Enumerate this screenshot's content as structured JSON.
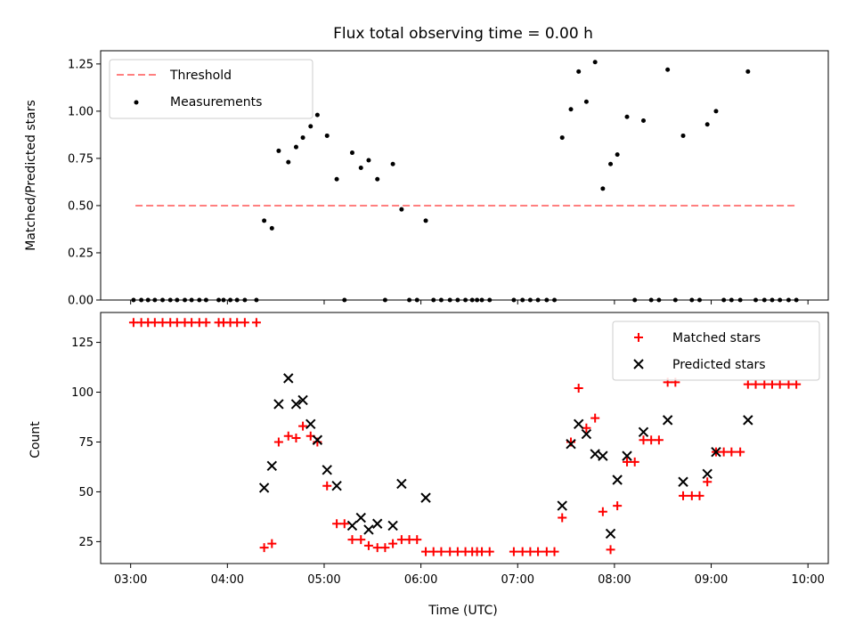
{
  "chart_data": [
    {
      "type": "scatter",
      "title": "Flux total observing time = 0.00 h",
      "xlabel": "",
      "ylabel": "Matched/Predicted stars",
      "ylim": [
        0,
        1.32
      ],
      "yticks": [
        "0.00",
        "0.25",
        "0.50",
        "0.75",
        "1.00",
        "1.25"
      ],
      "legend": "top-left",
      "threshold": {
        "name": "Threshold",
        "value": 0.5,
        "x_start": 3.05,
        "x_end": 9.87,
        "color": "#ff7f7f"
      },
      "series": [
        {
          "name": "Measurements",
          "color": "#000000",
          "marker": "dot",
          "points": [
            [
              3.03,
              0
            ],
            [
              3.11,
              0
            ],
            [
              3.18,
              0
            ],
            [
              3.25,
              0
            ],
            [
              3.33,
              0
            ],
            [
              3.41,
              0
            ],
            [
              3.48,
              0
            ],
            [
              3.56,
              0
            ],
            [
              3.63,
              0
            ],
            [
              3.71,
              0
            ],
            [
              3.78,
              0
            ],
            [
              3.91,
              0
            ],
            [
              3.96,
              0
            ],
            [
              4.03,
              0
            ],
            [
              4.1,
              0
            ],
            [
              4.18,
              0
            ],
            [
              4.3,
              0
            ],
            [
              4.38,
              0.42
            ],
            [
              4.46,
              0.38
            ],
            [
              4.53,
              0.79
            ],
            [
              4.63,
              0.73
            ],
            [
              4.71,
              0.81
            ],
            [
              4.78,
              0.86
            ],
            [
              4.86,
              0.92
            ],
            [
              4.93,
              0.98
            ],
            [
              5.03,
              0.87
            ],
            [
              5.13,
              0.64
            ],
            [
              5.21,
              0
            ],
            [
              5.29,
              0.78
            ],
            [
              5.38,
              0.7
            ],
            [
              5.46,
              0.74
            ],
            [
              5.55,
              0.64
            ],
            [
              5.63,
              0
            ],
            [
              5.71,
              0.72
            ],
            [
              5.8,
              0.48
            ],
            [
              5.88,
              0
            ],
            [
              5.96,
              0
            ],
            [
              6.05,
              0.42
            ],
            [
              6.13,
              0
            ],
            [
              6.21,
              0
            ],
            [
              6.3,
              0
            ],
            [
              6.38,
              0
            ],
            [
              6.46,
              0
            ],
            [
              6.53,
              0
            ],
            [
              6.58,
              0
            ],
            [
              6.63,
              0
            ],
            [
              6.71,
              0
            ],
            [
              6.96,
              0
            ],
            [
              7.05,
              0
            ],
            [
              7.13,
              0
            ],
            [
              7.21,
              0
            ],
            [
              7.3,
              0
            ],
            [
              7.38,
              0
            ],
            [
              7.46,
              0.86
            ],
            [
              7.55,
              1.01
            ],
            [
              7.63,
              1.21
            ],
            [
              7.71,
              1.05
            ],
            [
              7.8,
              1.26
            ],
            [
              7.88,
              0.59
            ],
            [
              7.96,
              0.72
            ],
            [
              8.03,
              0.77
            ],
            [
              8.13,
              0.97
            ],
            [
              8.21,
              0
            ],
            [
              8.3,
              0.95
            ],
            [
              8.38,
              0
            ],
            [
              8.46,
              0
            ],
            [
              8.55,
              1.22
            ],
            [
              8.63,
              0
            ],
            [
              8.71,
              0.87
            ],
            [
              8.8,
              0
            ],
            [
              8.88,
              0
            ],
            [
              8.96,
              0.93
            ],
            [
              9.05,
              1.0
            ],
            [
              9.13,
              0
            ],
            [
              9.21,
              0
            ],
            [
              9.3,
              0
            ],
            [
              9.38,
              1.21
            ],
            [
              9.46,
              0
            ],
            [
              9.55,
              0
            ],
            [
              9.63,
              0
            ],
            [
              9.71,
              0
            ],
            [
              9.8,
              0
            ],
            [
              9.88,
              0
            ]
          ]
        }
      ]
    },
    {
      "type": "scatter",
      "title": "",
      "xlabel": "Time (UTC)",
      "ylabel": "Count",
      "ylim": [
        14,
        140
      ],
      "yticks": [
        "25",
        "50",
        "75",
        "100",
        "125"
      ],
      "xlim": [
        2.69,
        10.21
      ],
      "xticks": [
        "03:00",
        "04:00",
        "05:00",
        "06:00",
        "07:00",
        "08:00",
        "09:00",
        "10:00"
      ],
      "legend": "top-right",
      "series": [
        {
          "name": "Matched stars",
          "color": "#ff0000",
          "marker": "plus",
          "points": [
            [
              3.03,
              135
            ],
            [
              3.11,
              135
            ],
            [
              3.18,
              135
            ],
            [
              3.25,
              135
            ],
            [
              3.33,
              135
            ],
            [
              3.41,
              135
            ],
            [
              3.48,
              135
            ],
            [
              3.56,
              135
            ],
            [
              3.63,
              135
            ],
            [
              3.71,
              135
            ],
            [
              3.78,
              135
            ],
            [
              3.91,
              135
            ],
            [
              3.96,
              135
            ],
            [
              4.03,
              135
            ],
            [
              4.1,
              135
            ],
            [
              4.18,
              135
            ],
            [
              4.3,
              135
            ],
            [
              4.38,
              22
            ],
            [
              4.46,
              24
            ],
            [
              4.53,
              75
            ],
            [
              4.63,
              78
            ],
            [
              4.71,
              77
            ],
            [
              4.78,
              83
            ],
            [
              4.86,
              78
            ],
            [
              4.93,
              75
            ],
            [
              5.03,
              53
            ],
            [
              5.13,
              34
            ],
            [
              5.21,
              34
            ],
            [
              5.29,
              26
            ],
            [
              5.38,
              26
            ],
            [
              5.46,
              23
            ],
            [
              5.55,
              22
            ],
            [
              5.63,
              22
            ],
            [
              5.71,
              24
            ],
            [
              5.8,
              26
            ],
            [
              5.88,
              26
            ],
            [
              5.96,
              26
            ],
            [
              6.05,
              20
            ],
            [
              6.13,
              20
            ],
            [
              6.21,
              20
            ],
            [
              6.3,
              20
            ],
            [
              6.38,
              20
            ],
            [
              6.46,
              20
            ],
            [
              6.53,
              20
            ],
            [
              6.58,
              20
            ],
            [
              6.63,
              20
            ],
            [
              6.71,
              20
            ],
            [
              6.96,
              20
            ],
            [
              7.05,
              20
            ],
            [
              7.13,
              20
            ],
            [
              7.21,
              20
            ],
            [
              7.3,
              20
            ],
            [
              7.38,
              20
            ],
            [
              7.46,
              37
            ],
            [
              7.55,
              75
            ],
            [
              7.63,
              102
            ],
            [
              7.71,
              82
            ],
            [
              7.8,
              87
            ],
            [
              7.88,
              40
            ],
            [
              7.96,
              21
            ],
            [
              8.03,
              43
            ],
            [
              8.13,
              65
            ],
            [
              8.21,
              65
            ],
            [
              8.3,
              76
            ],
            [
              8.38,
              76
            ],
            [
              8.46,
              76
            ],
            [
              8.55,
              105
            ],
            [
              8.63,
              105
            ],
            [
              8.71,
              48
            ],
            [
              8.8,
              48
            ],
            [
              8.88,
              48
            ],
            [
              8.96,
              55
            ],
            [
              9.05,
              70
            ],
            [
              9.13,
              70
            ],
            [
              9.21,
              70
            ],
            [
              9.3,
              70
            ],
            [
              9.38,
              104
            ],
            [
              9.46,
              104
            ],
            [
              9.55,
              104
            ],
            [
              9.63,
              104
            ],
            [
              9.71,
              104
            ],
            [
              9.8,
              104
            ],
            [
              9.88,
              104
            ]
          ]
        },
        {
          "name": "Predicted stars",
          "color": "#000000",
          "marker": "x",
          "points": [
            [
              4.38,
              52
            ],
            [
              4.46,
              63
            ],
            [
              4.53,
              94
            ],
            [
              4.63,
              107
            ],
            [
              4.71,
              94
            ],
            [
              4.78,
              96
            ],
            [
              4.86,
              84
            ],
            [
              4.93,
              76
            ],
            [
              5.03,
              61
            ],
            [
              5.13,
              53
            ],
            [
              5.29,
              33
            ],
            [
              5.38,
              37
            ],
            [
              5.46,
              31
            ],
            [
              5.55,
              34
            ],
            [
              5.71,
              33
            ],
            [
              5.8,
              54
            ],
            [
              6.05,
              47
            ],
            [
              7.46,
              43
            ],
            [
              7.55,
              74
            ],
            [
              7.63,
              84
            ],
            [
              7.71,
              79
            ],
            [
              7.8,
              69
            ],
            [
              7.88,
              68
            ],
            [
              7.96,
              29
            ],
            [
              8.03,
              56
            ],
            [
              8.13,
              68
            ],
            [
              8.3,
              80
            ],
            [
              8.55,
              86
            ],
            [
              8.71,
              55
            ],
            [
              8.96,
              59
            ],
            [
              9.05,
              70
            ],
            [
              9.38,
              86
            ]
          ]
        }
      ]
    }
  ]
}
